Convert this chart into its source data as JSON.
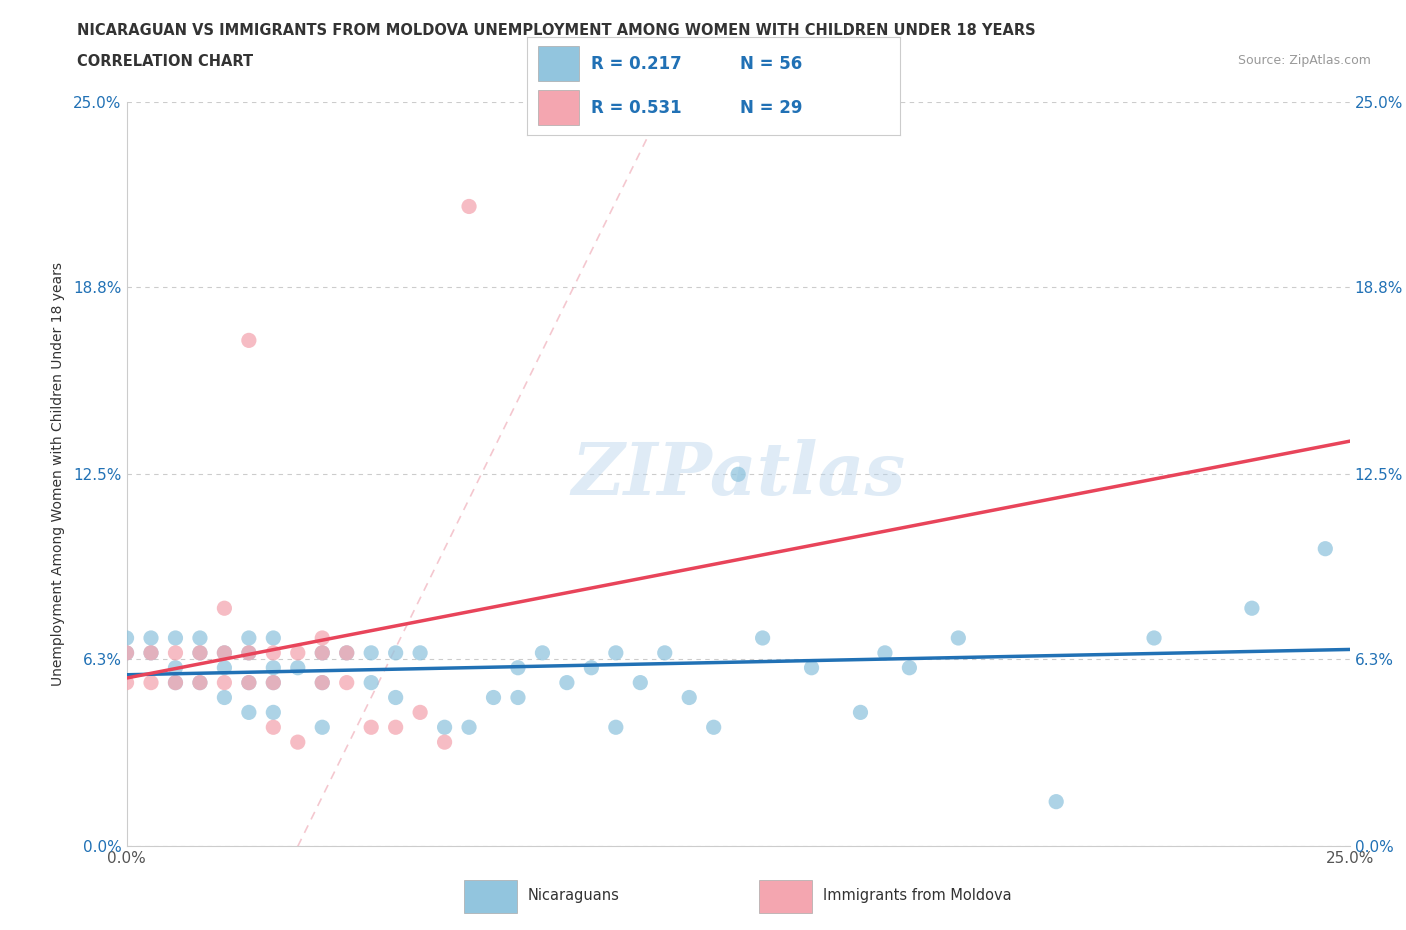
{
  "title_line1": "NICARAGUAN VS IMMIGRANTS FROM MOLDOVA UNEMPLOYMENT AMONG WOMEN WITH CHILDREN UNDER 18 YEARS",
  "title_line2": "CORRELATION CHART",
  "source": "Source: ZipAtlas.com",
  "ylabel": "Unemployment Among Women with Children Under 18 years",
  "xmin": 0.0,
  "xmax": 0.25,
  "ymin": 0.0,
  "ymax": 0.25,
  "yticks": [
    0.0,
    0.063,
    0.125,
    0.188,
    0.25
  ],
  "ytick_labels": [
    "0.0%",
    "6.3%",
    "12.5%",
    "18.8%",
    "25.0%"
  ],
  "xtick_labels": [
    "0.0%",
    "25.0%"
  ],
  "blue_R": 0.217,
  "blue_N": 56,
  "pink_R": 0.531,
  "pink_N": 29,
  "blue_color": "#92C5DE",
  "pink_color": "#F4A6B0",
  "blue_line_color": "#2171B5",
  "pink_line_color": "#E8445A",
  "background_color": "#FFFFFF",
  "grid_color": "#CCCCCC",
  "blue_scatter_x": [
    0.0,
    0.0,
    0.005,
    0.005,
    0.01,
    0.01,
    0.01,
    0.015,
    0.015,
    0.015,
    0.02,
    0.02,
    0.02,
    0.025,
    0.025,
    0.025,
    0.025,
    0.03,
    0.03,
    0.03,
    0.03,
    0.035,
    0.04,
    0.04,
    0.04,
    0.045,
    0.05,
    0.05,
    0.055,
    0.055,
    0.06,
    0.065,
    0.07,
    0.075,
    0.08,
    0.08,
    0.085,
    0.09,
    0.095,
    0.1,
    0.1,
    0.105,
    0.11,
    0.115,
    0.12,
    0.125,
    0.13,
    0.14,
    0.15,
    0.155,
    0.16,
    0.17,
    0.19,
    0.21,
    0.23,
    0.245
  ],
  "blue_scatter_y": [
    0.065,
    0.07,
    0.065,
    0.07,
    0.055,
    0.06,
    0.07,
    0.055,
    0.065,
    0.07,
    0.05,
    0.06,
    0.065,
    0.045,
    0.055,
    0.065,
    0.07,
    0.045,
    0.055,
    0.06,
    0.07,
    0.06,
    0.04,
    0.055,
    0.065,
    0.065,
    0.055,
    0.065,
    0.05,
    0.065,
    0.065,
    0.04,
    0.04,
    0.05,
    0.05,
    0.06,
    0.065,
    0.055,
    0.06,
    0.04,
    0.065,
    0.055,
    0.065,
    0.05,
    0.04,
    0.125,
    0.07,
    0.06,
    0.045,
    0.065,
    0.06,
    0.07,
    0.015,
    0.07,
    0.08,
    0.1
  ],
  "pink_scatter_x": [
    0.0,
    0.0,
    0.005,
    0.005,
    0.01,
    0.01,
    0.015,
    0.015,
    0.02,
    0.02,
    0.02,
    0.025,
    0.025,
    0.025,
    0.03,
    0.03,
    0.03,
    0.035,
    0.035,
    0.04,
    0.04,
    0.04,
    0.045,
    0.045,
    0.05,
    0.055,
    0.06,
    0.065,
    0.07
  ],
  "pink_scatter_y": [
    0.055,
    0.065,
    0.055,
    0.065,
    0.055,
    0.065,
    0.055,
    0.065,
    0.055,
    0.065,
    0.08,
    0.055,
    0.065,
    0.17,
    0.055,
    0.065,
    0.04,
    0.035,
    0.065,
    0.055,
    0.065,
    0.07,
    0.055,
    0.065,
    0.04,
    0.04,
    0.045,
    0.035,
    0.215
  ],
  "watermark": "ZIPatlas",
  "legend_blue_label": "Nicaraguans",
  "legend_pink_label": "Immigrants from Moldova",
  "dashed_line_color": "#E8A0A8"
}
